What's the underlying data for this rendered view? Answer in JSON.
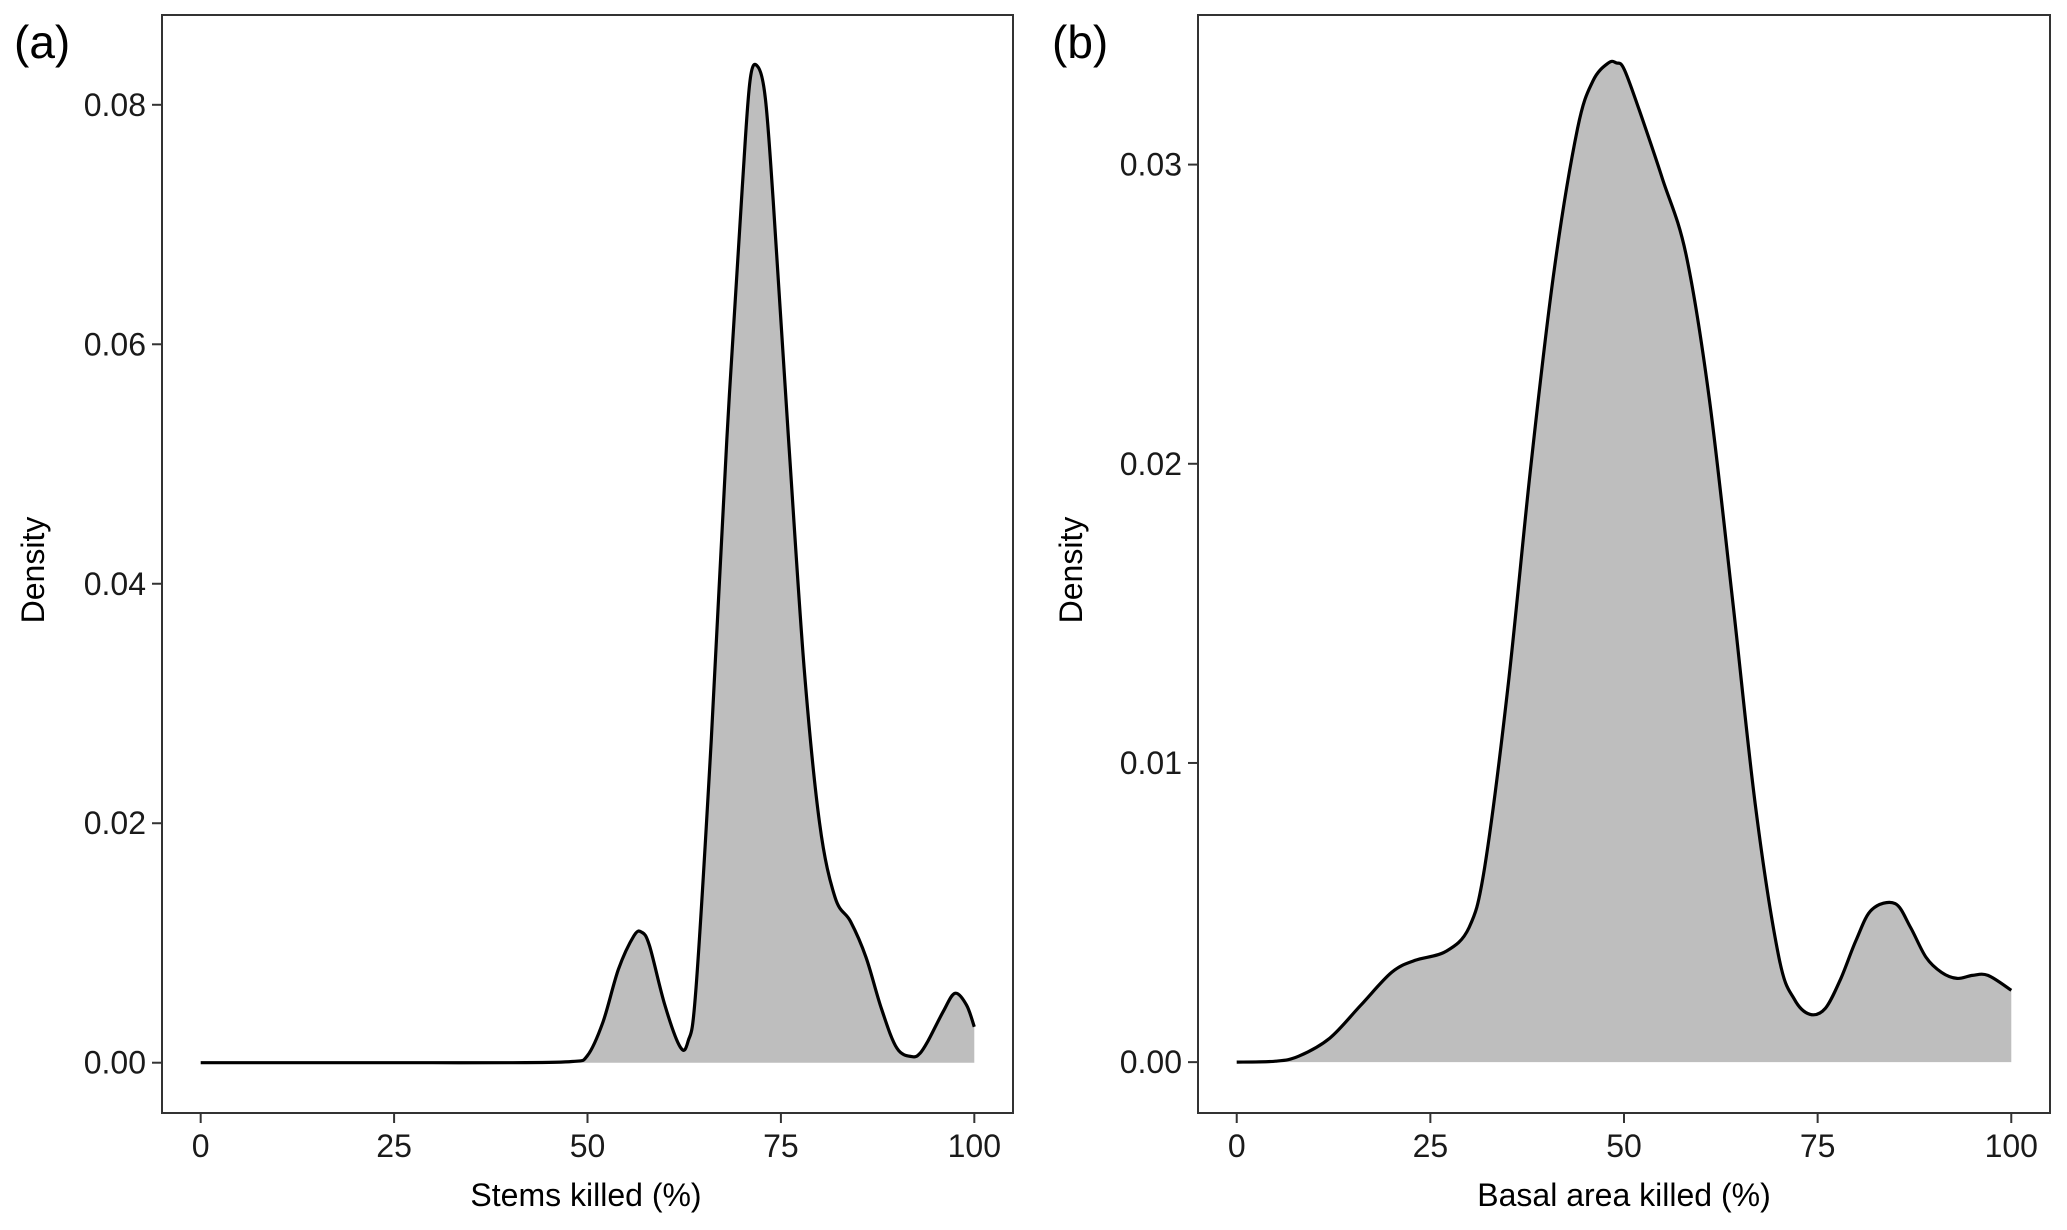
{
  "chart_data": [
    {
      "type": "area",
      "panel_label": "(a)",
      "xlabel": "Stems killed (%)",
      "ylabel": "Density",
      "xlim": [
        -5,
        105
      ],
      "ylim": [
        -0.0042,
        0.0875
      ],
      "xticks": [
        0,
        25,
        50,
        75,
        100
      ],
      "xtick_labels": [
        "0",
        "25",
        "50",
        "75",
        "100"
      ],
      "yticks": [
        0.0,
        0.02,
        0.04,
        0.06,
        0.08
      ],
      "ytick_labels": [
        "0.00",
        "0.02",
        "0.04",
        "0.06",
        "0.08"
      ],
      "grid": false,
      "legend": "none",
      "series": [
        {
          "x": [
            0,
            10,
            20,
            30,
            40,
            48,
            50,
            52,
            54,
            56,
            57,
            58,
            60,
            62,
            63,
            64,
            66,
            68,
            70,
            71,
            72,
            73,
            74,
            76,
            78,
            80,
            82,
            84,
            86,
            88,
            90,
            92,
            93,
            94,
            96,
            97.5,
            99,
            100
          ],
          "y": [
            0,
            0,
            0,
            0,
            0,
            0.0001,
            0.0006,
            0.0034,
            0.0078,
            0.0106,
            0.0109,
            0.0098,
            0.0048,
            0.0013,
            0.0018,
            0.006,
            0.027,
            0.052,
            0.073,
            0.082,
            0.0832,
            0.0805,
            0.072,
            0.052,
            0.033,
            0.02,
            0.0138,
            0.0118,
            0.0088,
            0.0045,
            0.0012,
            0.0005,
            0.0008,
            0.0018,
            0.0043,
            0.0058,
            0.0048,
            0.003
          ]
        }
      ]
    },
    {
      "type": "area",
      "panel_label": "(b)",
      "xlabel": "Basal area killed (%)",
      "ylabel": "Density",
      "xlim": [
        -5,
        105
      ],
      "ylim": [
        -0.0017,
        0.035
      ],
      "xticks": [
        0,
        25,
        50,
        75,
        100
      ],
      "xtick_labels": [
        "0",
        "25",
        "50",
        "75",
        "100"
      ],
      "yticks": [
        0.0,
        0.01,
        0.02,
        0.03
      ],
      "ytick_labels": [
        "0.00",
        "0.01",
        "0.02",
        "0.03"
      ],
      "grid": false,
      "legend": "none",
      "series": [
        {
          "x": [
            0,
            5,
            8,
            12,
            16,
            20,
            23,
            27,
            30,
            32,
            35,
            38,
            41,
            44,
            46,
            48,
            49,
            50,
            52,
            55,
            58,
            61,
            64,
            67,
            70,
            72,
            74,
            76,
            78,
            80,
            82,
            85,
            87,
            89,
            91,
            93,
            95,
            97,
            100
          ],
          "y": [
            0,
            3e-05,
            0.0002,
            0.0008,
            0.0019,
            0.003,
            0.0034,
            0.0037,
            0.0045,
            0.0065,
            0.0125,
            0.02,
            0.0265,
            0.0312,
            0.0328,
            0.0334,
            0.0334,
            0.0332,
            0.0318,
            0.0295,
            0.027,
            0.0222,
            0.0155,
            0.0085,
            0.0035,
            0.0021,
            0.0016,
            0.0018,
            0.0028,
            0.0041,
            0.0051,
            0.0053,
            0.0045,
            0.0035,
            0.003,
            0.0028,
            0.0029,
            0.0029,
            0.0024
          ]
        }
      ]
    }
  ],
  "colors": {
    "fill": "#bebebe",
    "line": "#000000",
    "frame": "#333333",
    "tick": "#333333"
  }
}
